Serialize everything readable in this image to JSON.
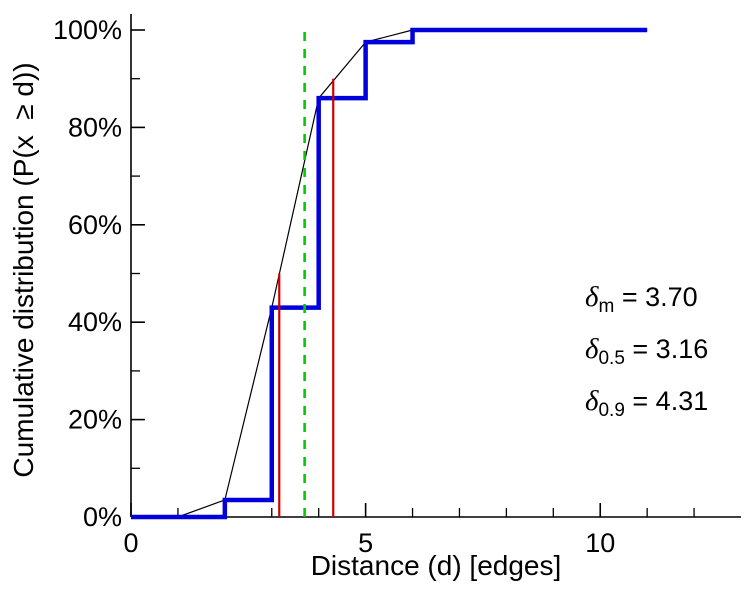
{
  "figure": {
    "background": "#ffffff"
  },
  "chart_data": {
    "type": "line",
    "title": "",
    "xlabel": "Distance (d) [edges]",
    "ylabel": "Cumulative distribution (P(x  ≥ d))",
    "xlim": [
      0,
      13
    ],
    "ylim": [
      0,
      100
    ],
    "grid": false,
    "legend_position": "none",
    "x_axis": {
      "major": [
        {
          "v": 0,
          "label": "0"
        },
        {
          "v": 5,
          "label": "5"
        },
        {
          "v": 10,
          "label": "10"
        }
      ],
      "minor": [
        1,
        2,
        3,
        4,
        6,
        7,
        8,
        9,
        11,
        12
      ]
    },
    "y_axis": {
      "major": [
        {
          "v": 0,
          "label": "0%"
        },
        {
          "v": 20,
          "label": "20%"
        },
        {
          "v": 40,
          "label": "40%"
        },
        {
          "v": 60,
          "label": "60%"
        },
        {
          "v": 80,
          "label": "80%"
        },
        {
          "v": 100,
          "label": "100%"
        }
      ],
      "minor": [
        10,
        30,
        50,
        70,
        90
      ]
    },
    "series": [
      {
        "name": "linear-interpolation-line",
        "kind": "line",
        "color": "#000000",
        "width": 1.2,
        "points": [
          [
            0,
            0
          ],
          [
            1,
            0
          ],
          [
            2,
            3.5
          ],
          [
            3,
            43
          ],
          [
            4,
            86
          ],
          [
            5,
            97.5
          ],
          [
            6,
            100
          ],
          [
            11,
            100
          ]
        ]
      },
      {
        "name": "cumulative-step-line",
        "kind": "line",
        "color": "#0000dd",
        "width": 4.5,
        "points": [
          [
            0,
            0
          ],
          [
            2,
            0
          ],
          [
            2,
            3.5
          ],
          [
            3,
            3.5
          ],
          [
            3,
            43
          ],
          [
            4,
            43
          ],
          [
            4,
            86
          ],
          [
            5,
            86
          ],
          [
            5,
            97.5
          ],
          [
            6,
            97.5
          ],
          [
            6,
            100
          ],
          [
            11,
            100
          ]
        ]
      },
      {
        "name": "median-marker-line",
        "kind": "vline",
        "color": "#cc0000",
        "width": 2.2,
        "x": 3.16,
        "y0": 0,
        "y1": 50,
        "dash": null
      },
      {
        "name": "p90-marker-line",
        "kind": "vline",
        "color": "#cc0000",
        "width": 2.2,
        "x": 4.31,
        "y0": 0,
        "y1": 90,
        "dash": null
      },
      {
        "name": "mean-marker-line",
        "kind": "vline",
        "color": "#00cc00",
        "width": 2.6,
        "x": 3.7,
        "y0": 0,
        "y1": 100,
        "dash": "9,8"
      }
    ],
    "annotations": [
      {
        "symbol": "δ",
        "subscript": "m",
        "value": 3.7,
        "text": " = 3.70"
      },
      {
        "symbol": "δ",
        "subscript": "0.5",
        "value": 3.16,
        "text": " = 3.16"
      },
      {
        "symbol": "δ",
        "subscript": "0.9",
        "value": 4.31,
        "text": " = 4.31"
      }
    ]
  }
}
